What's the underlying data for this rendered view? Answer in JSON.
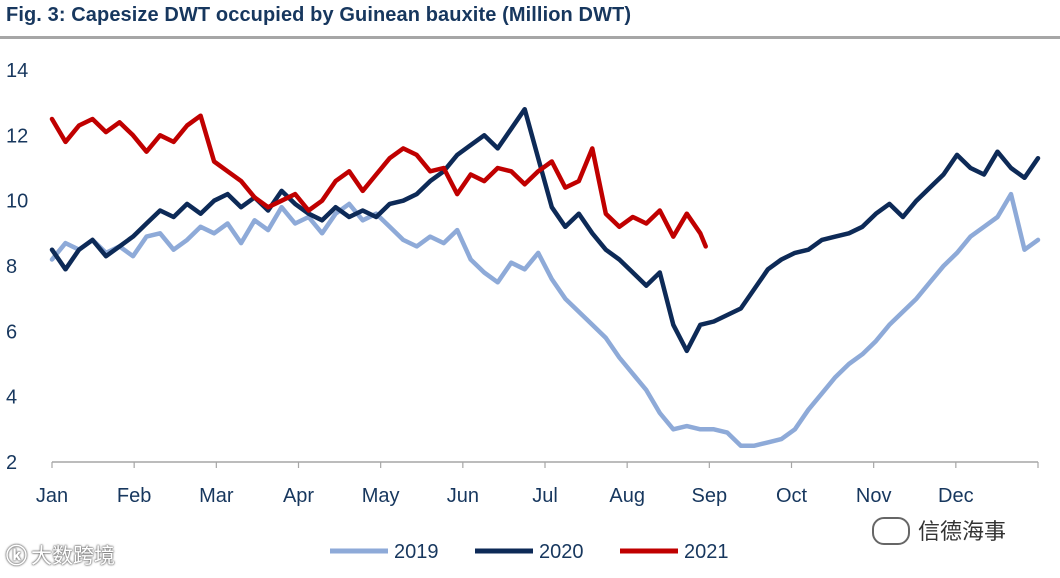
{
  "title": "Fig. 3: Capesize DWT occupied by Guinean bauxite (Million DWT)",
  "watermark_left": {
    "logo": "ⓚ",
    "text": "大数跨境"
  },
  "watermark_right": {
    "text": "信德海事"
  },
  "chart_data": {
    "type": "line",
    "title": "Fig. 3: Capesize DWT occupied by Guinean bauxite (Million DWT)",
    "xlabel": "",
    "ylabel": "",
    "ylim": [
      2,
      14
    ],
    "yticks": [
      "2",
      "4",
      "6",
      "8",
      "10",
      "12",
      "14"
    ],
    "xlim": [
      0,
      365
    ],
    "months": [
      "Jan",
      "Feb",
      "Mar",
      "Apr",
      "May",
      "Jun",
      "Jul",
      "Aug",
      "Sep",
      "Oct",
      "Nov",
      "Dec"
    ],
    "legend_position": "bottom",
    "grid": false,
    "series": [
      {
        "name": "2019",
        "color": "#8eaad8",
        "x": [
          0,
          5,
          10,
          15,
          20,
          25,
          30,
          35,
          40,
          45,
          50,
          55,
          60,
          65,
          70,
          75,
          80,
          85,
          90,
          95,
          100,
          105,
          110,
          115,
          120,
          125,
          130,
          135,
          140,
          145,
          150,
          155,
          160,
          165,
          170,
          175,
          180,
          185,
          190,
          195,
          200,
          205,
          210,
          215,
          220,
          225,
          230,
          235,
          240,
          245,
          250,
          255,
          260,
          265,
          270,
          275,
          280,
          285,
          290,
          295,
          300,
          305,
          310,
          315,
          320,
          325,
          330,
          335,
          340,
          345,
          350,
          355,
          360,
          365
        ],
        "values": [
          8.2,
          8.7,
          8.5,
          8.8,
          8.4,
          8.6,
          8.3,
          8.9,
          9.0,
          8.5,
          8.8,
          9.2,
          9.0,
          9.3,
          8.7,
          9.4,
          9.1,
          9.8,
          9.3,
          9.5,
          9.0,
          9.6,
          9.9,
          9.4,
          9.6,
          9.2,
          8.8,
          8.6,
          8.9,
          8.7,
          9.1,
          8.2,
          7.8,
          7.5,
          8.1,
          7.9,
          8.4,
          7.6,
          7.0,
          6.6,
          6.2,
          5.8,
          5.2,
          4.7,
          4.2,
          3.5,
          3.0,
          3.1,
          3.0,
          3.0,
          2.9,
          2.5,
          2.5,
          2.6,
          2.7,
          3.0,
          3.6,
          4.1,
          4.6,
          5.0,
          5.3,
          5.7,
          6.2,
          6.6,
          7.0,
          7.5,
          8.0,
          8.4,
          8.9,
          9.2,
          9.5,
          10.2,
          8.5,
          8.8
        ]
      },
      {
        "name": "2020",
        "color": "#0d2a57",
        "x": [
          0,
          5,
          10,
          15,
          20,
          25,
          30,
          35,
          40,
          45,
          50,
          55,
          60,
          65,
          70,
          75,
          80,
          85,
          90,
          95,
          100,
          105,
          110,
          115,
          120,
          125,
          130,
          135,
          140,
          145,
          150,
          155,
          160,
          165,
          170,
          175,
          180,
          185,
          190,
          195,
          200,
          205,
          210,
          215,
          220,
          225,
          230,
          235,
          240,
          245,
          250,
          255,
          260,
          265,
          270,
          275,
          280,
          285,
          290,
          295,
          300,
          305,
          310,
          315,
          320,
          325,
          330,
          335,
          340,
          345,
          350,
          355,
          360,
          365
        ],
        "values": [
          8.5,
          7.9,
          8.5,
          8.8,
          8.3,
          8.6,
          8.9,
          9.3,
          9.7,
          9.5,
          9.9,
          9.6,
          10.0,
          10.2,
          9.8,
          10.1,
          9.7,
          10.3,
          9.9,
          9.6,
          9.4,
          9.8,
          9.5,
          9.7,
          9.5,
          9.9,
          10.0,
          10.2,
          10.6,
          10.9,
          11.4,
          11.7,
          12.0,
          11.6,
          12.2,
          12.8,
          11.3,
          9.8,
          9.2,
          9.6,
          9.0,
          8.5,
          8.2,
          7.8,
          7.4,
          7.8,
          6.2,
          5.4,
          6.2,
          6.3,
          6.5,
          6.7,
          7.3,
          7.9,
          8.2,
          8.4,
          8.5,
          8.8,
          8.9,
          9.0,
          9.2,
          9.6,
          9.9,
          9.5,
          10.0,
          10.4,
          10.8,
          11.4,
          11.0,
          10.8,
          11.5,
          11.0,
          10.7,
          11.3
        ]
      },
      {
        "name": "2021",
        "color": "#c00000",
        "x": [
          0,
          5,
          10,
          15,
          20,
          25,
          30,
          35,
          40,
          45,
          50,
          55,
          60,
          65,
          70,
          75,
          80,
          85,
          90,
          95,
          100,
          105,
          110,
          115,
          120,
          125,
          130,
          135,
          140,
          145,
          150,
          155,
          160,
          165,
          170,
          175,
          180,
          185,
          190,
          195,
          200,
          205,
          210,
          215,
          220,
          225,
          230,
          235,
          240,
          242
        ],
        "values": [
          12.5,
          11.8,
          12.3,
          12.5,
          12.1,
          12.4,
          12.0,
          11.5,
          12.0,
          11.8,
          12.3,
          12.6,
          11.2,
          10.9,
          10.6,
          10.1,
          9.8,
          10.0,
          10.2,
          9.7,
          10.0,
          10.6,
          10.9,
          10.3,
          10.8,
          11.3,
          11.6,
          11.4,
          10.9,
          11.0,
          10.2,
          10.8,
          10.6,
          11.0,
          10.9,
          10.5,
          10.9,
          11.2,
          10.4,
          10.6,
          11.6,
          9.6,
          9.2,
          9.5,
          9.3,
          9.7,
          8.9,
          9.6,
          9.0,
          8.6
        ]
      }
    ]
  }
}
